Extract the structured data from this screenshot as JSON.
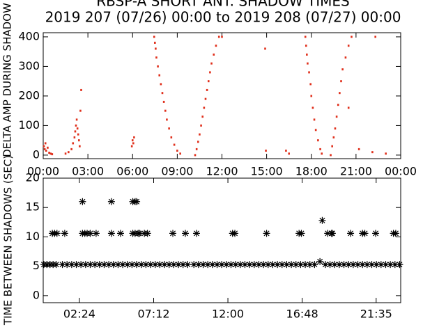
{
  "chart_data": [
    {
      "type": "scatter",
      "title": "RBSP-A SHORT ANT. SHADOW TIMES",
      "subtitle": "2019 207 (07/26) 00:00 to 2019 208 (07/27) 00:00",
      "ylabel": "DELTA AMP DURING SHADOW",
      "marker": "dot",
      "color": "#e0301c",
      "xlim": [
        0,
        24
      ],
      "xticks": [
        {
          "value": 0,
          "label": "00:00"
        },
        {
          "value": 3,
          "label": "03:00"
        },
        {
          "value": 6,
          "label": "06:00"
        },
        {
          "value": 9,
          "label": "09:00"
        },
        {
          "value": 12,
          "label": "12:00"
        },
        {
          "value": 15,
          "label": "15:00"
        },
        {
          "value": 18,
          "label": "18:00"
        },
        {
          "value": 21,
          "label": "21:00"
        },
        {
          "value": 24,
          "label": "00:00"
        }
      ],
      "ylim": [
        -12,
        414
      ],
      "yticks": [
        0,
        100,
        200,
        300,
        400
      ],
      "x": [
        0.05,
        0.1,
        0.15,
        0.2,
        0.3,
        0.4,
        0.5,
        0.6,
        1.5,
        1.7,
        1.9,
        2.0,
        2.1,
        2.15,
        2.2,
        2.25,
        2.3,
        2.35,
        2.4,
        2.45,
        2.5,
        2.55,
        5.95,
        6.0,
        6.05,
        6.1,
        7.45,
        7.5,
        7.55,
        7.6,
        7.7,
        7.8,
        7.9,
        8.0,
        8.1,
        8.2,
        8.3,
        8.45,
        8.6,
        8.8,
        9.0,
        9.2,
        10.2,
        10.3,
        10.4,
        10.5,
        10.6,
        10.7,
        10.8,
        10.9,
        11.0,
        11.1,
        11.2,
        11.3,
        11.45,
        11.6,
        11.8,
        12.0,
        14.9,
        14.95,
        16.3,
        16.5,
        17.6,
        17.65,
        17.7,
        17.75,
        17.85,
        17.95,
        18.0,
        18.1,
        18.2,
        18.3,
        18.45,
        18.6,
        18.7,
        19.3,
        19.4,
        19.5,
        19.6,
        19.7,
        19.8,
        19.9,
        20.0,
        20.1,
        20.3,
        20.5,
        20.7,
        20.5,
        21.2,
        22.1,
        22.3,
        23.0
      ],
      "values": [
        30,
        20,
        40,
        15,
        25,
        8,
        5,
        3,
        5,
        10,
        20,
        40,
        60,
        80,
        100,
        120,
        90,
        70,
        50,
        30,
        150,
        220,
        30,
        50,
        40,
        60,
        400,
        380,
        360,
        330,
        300,
        270,
        240,
        210,
        180,
        150,
        120,
        90,
        60,
        35,
        15,
        5,
        0,
        20,
        45,
        70,
        100,
        130,
        160,
        190,
        220,
        250,
        280,
        310,
        340,
        370,
        400,
        400,
        360,
        15,
        15,
        5,
        400,
        370,
        340,
        310,
        280,
        240,
        200,
        160,
        120,
        85,
        50,
        20,
        5,
        0,
        30,
        60,
        90,
        130,
        170,
        210,
        250,
        290,
        330,
        370,
        400,
        160,
        20,
        10,
        400,
        5
      ]
    },
    {
      "type": "scatter",
      "ylabel": "TIME BETWEEN SHADOWS (SEC)",
      "marker": "asterisk",
      "color": "#000000",
      "xlim": [
        0.06,
        23.17
      ],
      "xticks": [
        {
          "value": 2.4,
          "label": "02:24"
        },
        {
          "value": 7.2,
          "label": "07:12"
        },
        {
          "value": 12,
          "label": "12:00"
        },
        {
          "value": 16.8,
          "label": "16:48"
        },
        {
          "value": 21.583,
          "label": "21:35"
        }
      ],
      "ylim": [
        -1.2,
        20
      ],
      "yticks": [
        0,
        5,
        10,
        15,
        20
      ],
      "x": [
        0.1,
        0.3,
        0.5,
        0.7,
        0.9,
        1.3,
        1.6,
        1.9,
        2.2,
        2.5,
        2.8,
        3.1,
        3.4,
        3.7,
        4.0,
        4.3,
        4.6,
        4.9,
        5.2,
        5.5,
        5.8,
        6.1,
        6.4,
        6.7,
        7.0,
        7.3,
        7.6,
        7.9,
        8.2,
        8.5,
        8.8,
        9.1,
        9.4,
        9.8,
        10.1,
        10.4,
        10.7,
        11.0,
        11.3,
        11.6,
        11.9,
        12.2,
        12.5,
        12.8,
        13.1,
        13.4,
        13.7,
        14.0,
        14.3,
        14.6,
        14.9,
        15.2,
        15.5,
        15.8,
        16.1,
        16.4,
        16.7,
        17.0,
        17.3,
        17.6,
        18.3,
        18.6,
        18.9,
        19.2,
        19.5,
        19.8,
        20.1,
        20.4,
        20.7,
        21.0,
        21.3,
        21.6,
        21.9,
        22.2,
        22.5,
        22.8,
        23.1,
        0.65,
        0.8,
        0.95,
        1.45,
        2.6,
        2.75,
        2.9,
        3.1,
        3.48,
        4.47,
        5.06,
        5.85,
        6.0,
        6.2,
        6.3,
        6.6,
        6.8,
        8.44,
        9.25,
        9.97,
        12.3,
        12.45,
        14.5,
        16.6,
        16.75,
        18.45,
        18.7,
        18.75,
        19.93,
        20.7,
        20.85,
        21.55,
        22.7,
        22.85,
        2.6,
        4.47,
        5.85,
        6.0,
        6.1,
        18.1,
        17.95
      ],
      "values": [
        5.3,
        5.3,
        5.3,
        5.3,
        5.3,
        5.3,
        5.3,
        5.3,
        5.3,
        5.3,
        5.3,
        5.3,
        5.3,
        5.3,
        5.3,
        5.3,
        5.3,
        5.3,
        5.3,
        5.3,
        5.3,
        5.3,
        5.3,
        5.3,
        5.3,
        5.3,
        5.3,
        5.3,
        5.3,
        5.3,
        5.3,
        5.3,
        5.3,
        5.3,
        5.3,
        5.3,
        5.3,
        5.3,
        5.3,
        5.3,
        5.3,
        5.3,
        5.3,
        5.3,
        5.3,
        5.3,
        5.3,
        5.3,
        5.3,
        5.3,
        5.3,
        5.3,
        5.3,
        5.3,
        5.3,
        5.3,
        5.3,
        5.3,
        5.3,
        5.3,
        5.3,
        5.3,
        5.3,
        5.3,
        5.3,
        5.3,
        5.3,
        5.3,
        5.3,
        5.3,
        5.3,
        5.3,
        5.3,
        5.3,
        5.3,
        5.3,
        5.3,
        10.6,
        10.6,
        10.6,
        10.6,
        10.6,
        10.6,
        10.6,
        10.6,
        10.6,
        10.6,
        10.6,
        10.6,
        10.6,
        10.6,
        10.6,
        10.6,
        10.6,
        10.6,
        10.6,
        10.6,
        10.6,
        10.6,
        10.6,
        10.6,
        10.6,
        10.6,
        10.6,
        10.6,
        10.6,
        10.6,
        10.6,
        10.6,
        10.6,
        10.6,
        16,
        16,
        16,
        16,
        16,
        12.8,
        5.8
      ]
    }
  ]
}
